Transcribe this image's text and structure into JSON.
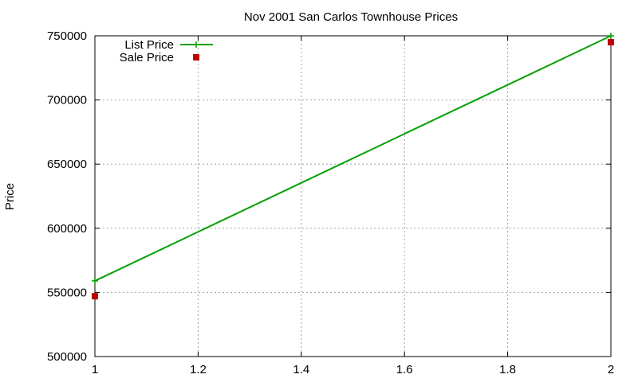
{
  "chart_data": {
    "type": "line",
    "title": "Nov 2001 San Carlos Townhouse Prices",
    "xlabel": "",
    "ylabel": "Price",
    "xlim": [
      1,
      2
    ],
    "ylim": [
      500000,
      750000
    ],
    "x_ticks": [
      1,
      1.2,
      1.4,
      1.6,
      1.8,
      2
    ],
    "x_tick_labels": [
      "1",
      "1.2",
      "1.4",
      "1.6",
      "1.8",
      "2"
    ],
    "y_ticks": [
      500000,
      550000,
      600000,
      650000,
      700000,
      750000
    ],
    "y_tick_labels": [
      "500000",
      "550000",
      "600000",
      "650000",
      "700000",
      "750000"
    ],
    "grid": true,
    "legend_position": "top-left",
    "series": [
      {
        "name": "List Price",
        "style": "line-cross",
        "color": "#00a000",
        "x": [
          1,
          2
        ],
        "y": [
          559000,
          750000
        ]
      },
      {
        "name": "Sale Price",
        "style": "square-marker",
        "color": "#c00000",
        "x": [
          1,
          2
        ],
        "y": [
          547000,
          745000
        ]
      }
    ]
  }
}
